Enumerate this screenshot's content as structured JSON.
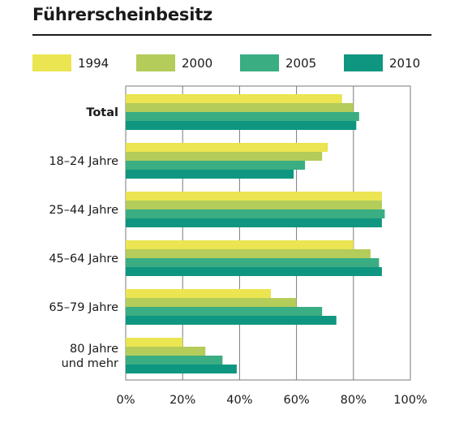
{
  "title": "Führerscheinbesitz",
  "chart_data": {
    "type": "bar",
    "orientation": "horizontal",
    "title": "Führerscheinbesitz",
    "categories": [
      {
        "lines": [
          "Total"
        ],
        "bold": true
      },
      {
        "lines": [
          "18–24 Jahre"
        ],
        "bold": false
      },
      {
        "lines": [
          "25–44 Jahre"
        ],
        "bold": false
      },
      {
        "lines": [
          "45–64 Jahre"
        ],
        "bold": false
      },
      {
        "lines": [
          "65–79 Jahre"
        ],
        "bold": false
      },
      {
        "lines": [
          "80 Jahre",
          "und mehr"
        ],
        "bold": false
      }
    ],
    "series": [
      {
        "name": "1994",
        "color": "#eae551",
        "values": [
          76,
          71,
          90,
          80,
          51,
          20
        ]
      },
      {
        "name": "2000",
        "color": "#b3cc5a",
        "values": [
          80,
          69,
          90,
          86,
          60,
          28
        ]
      },
      {
        "name": "2005",
        "color": "#3aad82",
        "values": [
          82,
          63,
          91,
          89,
          69,
          34
        ]
      },
      {
        "name": "2010",
        "color": "#0f9680",
        "values": [
          81,
          59,
          90,
          90,
          74,
          39
        ]
      }
    ],
    "xlim": [
      0,
      100
    ],
    "xticks": [
      "0%",
      "20%",
      "40%",
      "60%",
      "80%",
      "100%"
    ],
    "xtick_values": [
      0,
      20,
      40,
      60,
      80,
      100
    ],
    "grid": true,
    "legend": "top"
  }
}
